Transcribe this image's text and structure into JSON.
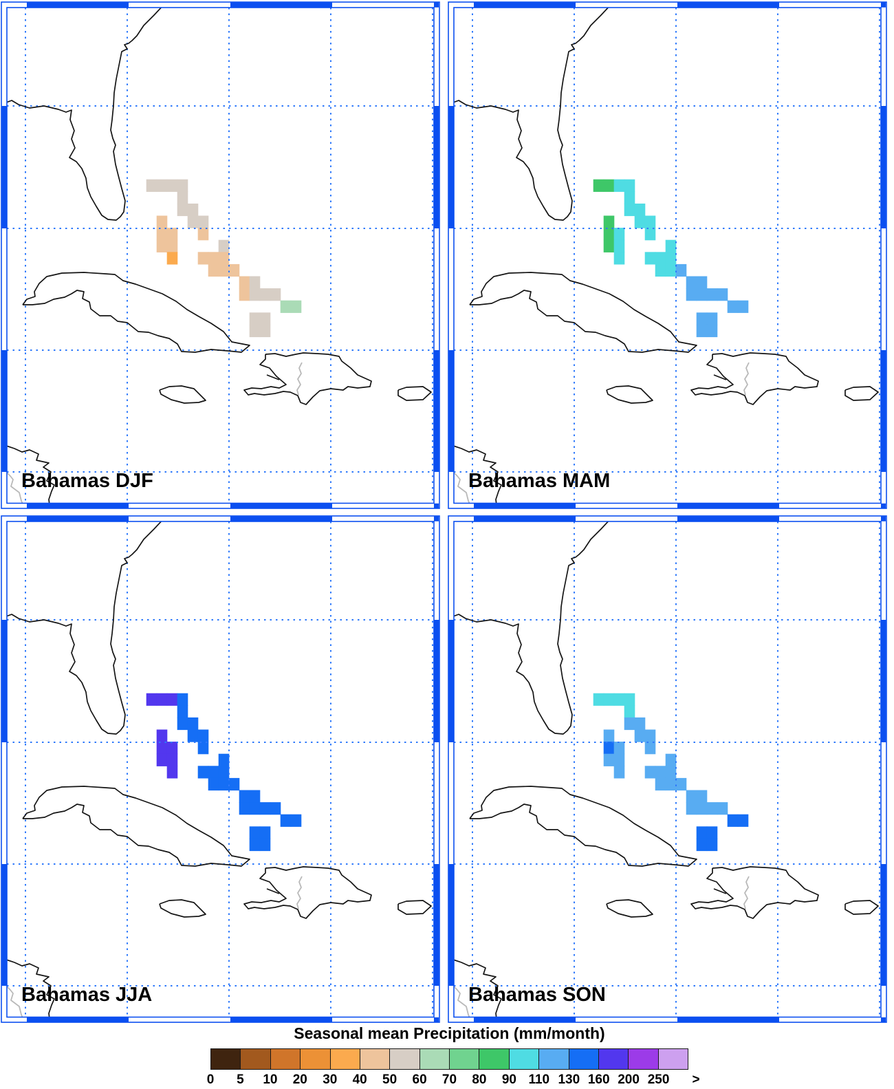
{
  "chart_data": {
    "type": "heatmap",
    "title": "Seasonal mean Precipitation (mm/month)",
    "region": "Bahamas",
    "units": "mm/month",
    "layout": {
      "rows": 2,
      "cols": 2,
      "legend_position": "bottom"
    },
    "bin_edges": [
      0,
      5,
      10,
      20,
      30,
      40,
      50,
      60,
      70,
      80,
      90,
      110,
      130,
      160,
      200,
      250
    ],
    "bin_colors": [
      "#3f240f",
      "#a2591e",
      "#d0752a",
      "#ec9136",
      "#fbaa4e",
      "#eec49c",
      "#d7cec5",
      "#aadbb6",
      "#70d38f",
      "#3ec768",
      "#4fdce3",
      "#58acf2",
      "#156ef5",
      "#5237ee",
      "#9c3be8",
      "#cda0ef"
    ],
    "cell_format": "[col, row, value = lower bound of precipitation bin in mm/month]",
    "panels": [
      {
        "season": "DJF",
        "label": "Bahamas DJF",
        "cells": [
          [
            0,
            0,
            50
          ],
          [
            1,
            0,
            50
          ],
          [
            2,
            0,
            50
          ],
          [
            3,
            0,
            50
          ],
          [
            3,
            1,
            50
          ],
          [
            3,
            2,
            50
          ],
          [
            4,
            2,
            50
          ],
          [
            1,
            3,
            40
          ],
          [
            4,
            3,
            50
          ],
          [
            5,
            3,
            50
          ],
          [
            1,
            4,
            40
          ],
          [
            2,
            4,
            40
          ],
          [
            5,
            4,
            40
          ],
          [
            1,
            5,
            40
          ],
          [
            2,
            5,
            40
          ],
          [
            7,
            5,
            50
          ],
          [
            2,
            6,
            30
          ],
          [
            5,
            6,
            40
          ],
          [
            6,
            6,
            40
          ],
          [
            7,
            6,
            40
          ],
          [
            6,
            7,
            40
          ],
          [
            7,
            7,
            40
          ],
          [
            8,
            7,
            40
          ],
          [
            9,
            8,
            40
          ],
          [
            10,
            8,
            50
          ],
          [
            9,
            9,
            40
          ],
          [
            10,
            9,
            50
          ],
          [
            11,
            9,
            50
          ],
          [
            12,
            9,
            50
          ],
          [
            13,
            10,
            60
          ],
          [
            14,
            10,
            60
          ],
          [
            10,
            11,
            50
          ],
          [
            11,
            11,
            50
          ],
          [
            10,
            12,
            50
          ],
          [
            11,
            12,
            50
          ]
        ]
      },
      {
        "season": "MAM",
        "label": "Bahamas MAM",
        "cells": [
          [
            0,
            0,
            80
          ],
          [
            1,
            0,
            80
          ],
          [
            2,
            0,
            90
          ],
          [
            3,
            0,
            90
          ],
          [
            3,
            1,
            90
          ],
          [
            3,
            2,
            90
          ],
          [
            4,
            2,
            90
          ],
          [
            1,
            3,
            80
          ],
          [
            4,
            3,
            90
          ],
          [
            5,
            3,
            90
          ],
          [
            1,
            4,
            80
          ],
          [
            2,
            4,
            90
          ],
          [
            5,
            4,
            90
          ],
          [
            1,
            5,
            80
          ],
          [
            2,
            5,
            90
          ],
          [
            7,
            5,
            90
          ],
          [
            2,
            6,
            90
          ],
          [
            5,
            6,
            90
          ],
          [
            6,
            6,
            90
          ],
          [
            7,
            6,
            90
          ],
          [
            6,
            7,
            90
          ],
          [
            7,
            7,
            90
          ],
          [
            8,
            7,
            110
          ],
          [
            9,
            8,
            110
          ],
          [
            10,
            8,
            110
          ],
          [
            9,
            9,
            110
          ],
          [
            10,
            9,
            110
          ],
          [
            11,
            9,
            110
          ],
          [
            12,
            9,
            110
          ],
          [
            13,
            10,
            110
          ],
          [
            14,
            10,
            110
          ],
          [
            10,
            11,
            110
          ],
          [
            11,
            11,
            110
          ],
          [
            10,
            12,
            110
          ],
          [
            11,
            12,
            110
          ]
        ]
      },
      {
        "season": "JJA",
        "label": "Bahamas JJA",
        "cells": [
          [
            0,
            0,
            160
          ],
          [
            1,
            0,
            160
          ],
          [
            2,
            0,
            160
          ],
          [
            3,
            0,
            130
          ],
          [
            3,
            1,
            130
          ],
          [
            3,
            2,
            130
          ],
          [
            4,
            2,
            130
          ],
          [
            1,
            3,
            160
          ],
          [
            4,
            3,
            130
          ],
          [
            5,
            3,
            130
          ],
          [
            1,
            4,
            160
          ],
          [
            2,
            4,
            160
          ],
          [
            5,
            4,
            130
          ],
          [
            1,
            5,
            160
          ],
          [
            2,
            5,
            160
          ],
          [
            7,
            5,
            130
          ],
          [
            2,
            6,
            160
          ],
          [
            5,
            6,
            130
          ],
          [
            6,
            6,
            130
          ],
          [
            7,
            6,
            130
          ],
          [
            6,
            7,
            130
          ],
          [
            7,
            7,
            130
          ],
          [
            8,
            7,
            130
          ],
          [
            9,
            8,
            130
          ],
          [
            10,
            8,
            130
          ],
          [
            9,
            9,
            130
          ],
          [
            10,
            9,
            130
          ],
          [
            11,
            9,
            130
          ],
          [
            12,
            9,
            130
          ],
          [
            13,
            10,
            130
          ],
          [
            14,
            10,
            130
          ],
          [
            10,
            11,
            130
          ],
          [
            11,
            11,
            130
          ],
          [
            10,
            12,
            130
          ],
          [
            11,
            12,
            130
          ]
        ]
      },
      {
        "season": "SON",
        "label": "Bahamas SON",
        "cells": [
          [
            0,
            0,
            90
          ],
          [
            1,
            0,
            90
          ],
          [
            2,
            0,
            90
          ],
          [
            3,
            0,
            90
          ],
          [
            3,
            1,
            90
          ],
          [
            3,
            2,
            110
          ],
          [
            4,
            2,
            110
          ],
          [
            1,
            3,
            110
          ],
          [
            4,
            3,
            110
          ],
          [
            5,
            3,
            110
          ],
          [
            1,
            4,
            130
          ],
          [
            2,
            4,
            110
          ],
          [
            5,
            4,
            110
          ],
          [
            1,
            5,
            110
          ],
          [
            2,
            5,
            110
          ],
          [
            7,
            5,
            110
          ],
          [
            2,
            6,
            110
          ],
          [
            5,
            6,
            110
          ],
          [
            6,
            6,
            110
          ],
          [
            7,
            6,
            110
          ],
          [
            6,
            7,
            110
          ],
          [
            7,
            7,
            110
          ],
          [
            8,
            7,
            110
          ],
          [
            9,
            8,
            110
          ],
          [
            10,
            8,
            110
          ],
          [
            9,
            9,
            110
          ],
          [
            10,
            9,
            110
          ],
          [
            11,
            9,
            110
          ],
          [
            12,
            9,
            110
          ],
          [
            13,
            10,
            130
          ],
          [
            14,
            10,
            130
          ],
          [
            10,
            11,
            130
          ],
          [
            11,
            11,
            130
          ],
          [
            10,
            12,
            130
          ],
          [
            11,
            12,
            130
          ]
        ]
      }
    ],
    "colorbar": {
      "title": "Seasonal mean Precipitation (mm/month)",
      "tick_labels": [
        "0",
        "5",
        "10",
        "20",
        "30",
        "40",
        "50",
        "60",
        "70",
        "80",
        "90",
        "110",
        "130",
        "160",
        "200",
        "250",
        ">"
      ]
    }
  }
}
